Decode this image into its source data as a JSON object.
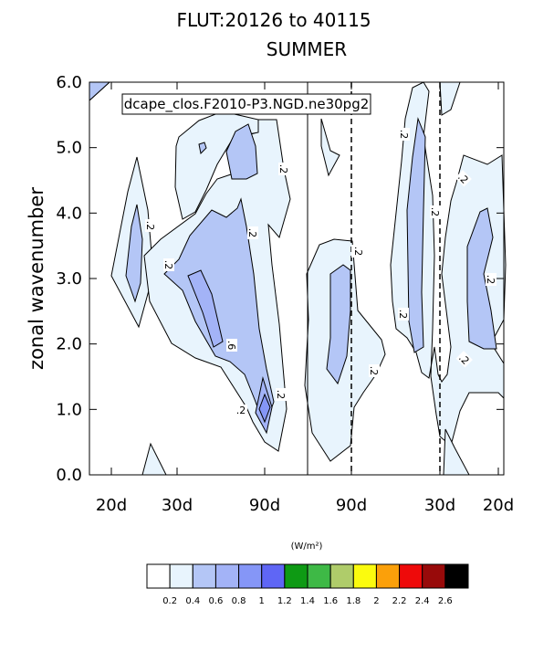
{
  "chart_data": {
    "type": "contour",
    "title": "FLUT:20126 to 40115",
    "subtitle": "SUMMER",
    "case_label": "dcape_clos.F2010-P3.NGD.ne30pg2",
    "ylabel": "zonal wavenumber",
    "ylim": [
      0,
      6
    ],
    "yticks": [
      "0.0",
      "1.0",
      "2.0",
      "3.0",
      "4.0",
      "5.0",
      "6.0"
    ],
    "xticks": [
      "20d",
      "30d",
      "90d",
      "90d",
      "30d",
      "20d"
    ],
    "x_dashed_periods": [
      "90d",
      "30d"
    ],
    "contour_labels": [
      ".2",
      ".2",
      ".2",
      ".2",
      ".6",
      ".2",
      ".2",
      ".2",
      ".2",
      ".2",
      ".2",
      ".2",
      ".2",
      ".2",
      ".2",
      ".2"
    ],
    "colorbar": {
      "unit": "(W/m²)",
      "levels": [
        "0.2",
        "0.4",
        "0.6",
        "0.8",
        "1",
        "1.2",
        "1.4",
        "1.6",
        "1.8",
        "2",
        "2.2",
        "2.4",
        "2.6"
      ],
      "colors": [
        "#ffffff",
        "#e8f4fd",
        "#b4c6f6",
        "#a3b3f7",
        "#8596f7",
        "#5f66f5",
        "#0e9a14",
        "#3eb946",
        "#afcc6a",
        "#fbfb0e",
        "#fba00a",
        "#ee0a0a",
        "#980a0a",
        "#000000"
      ]
    }
  }
}
